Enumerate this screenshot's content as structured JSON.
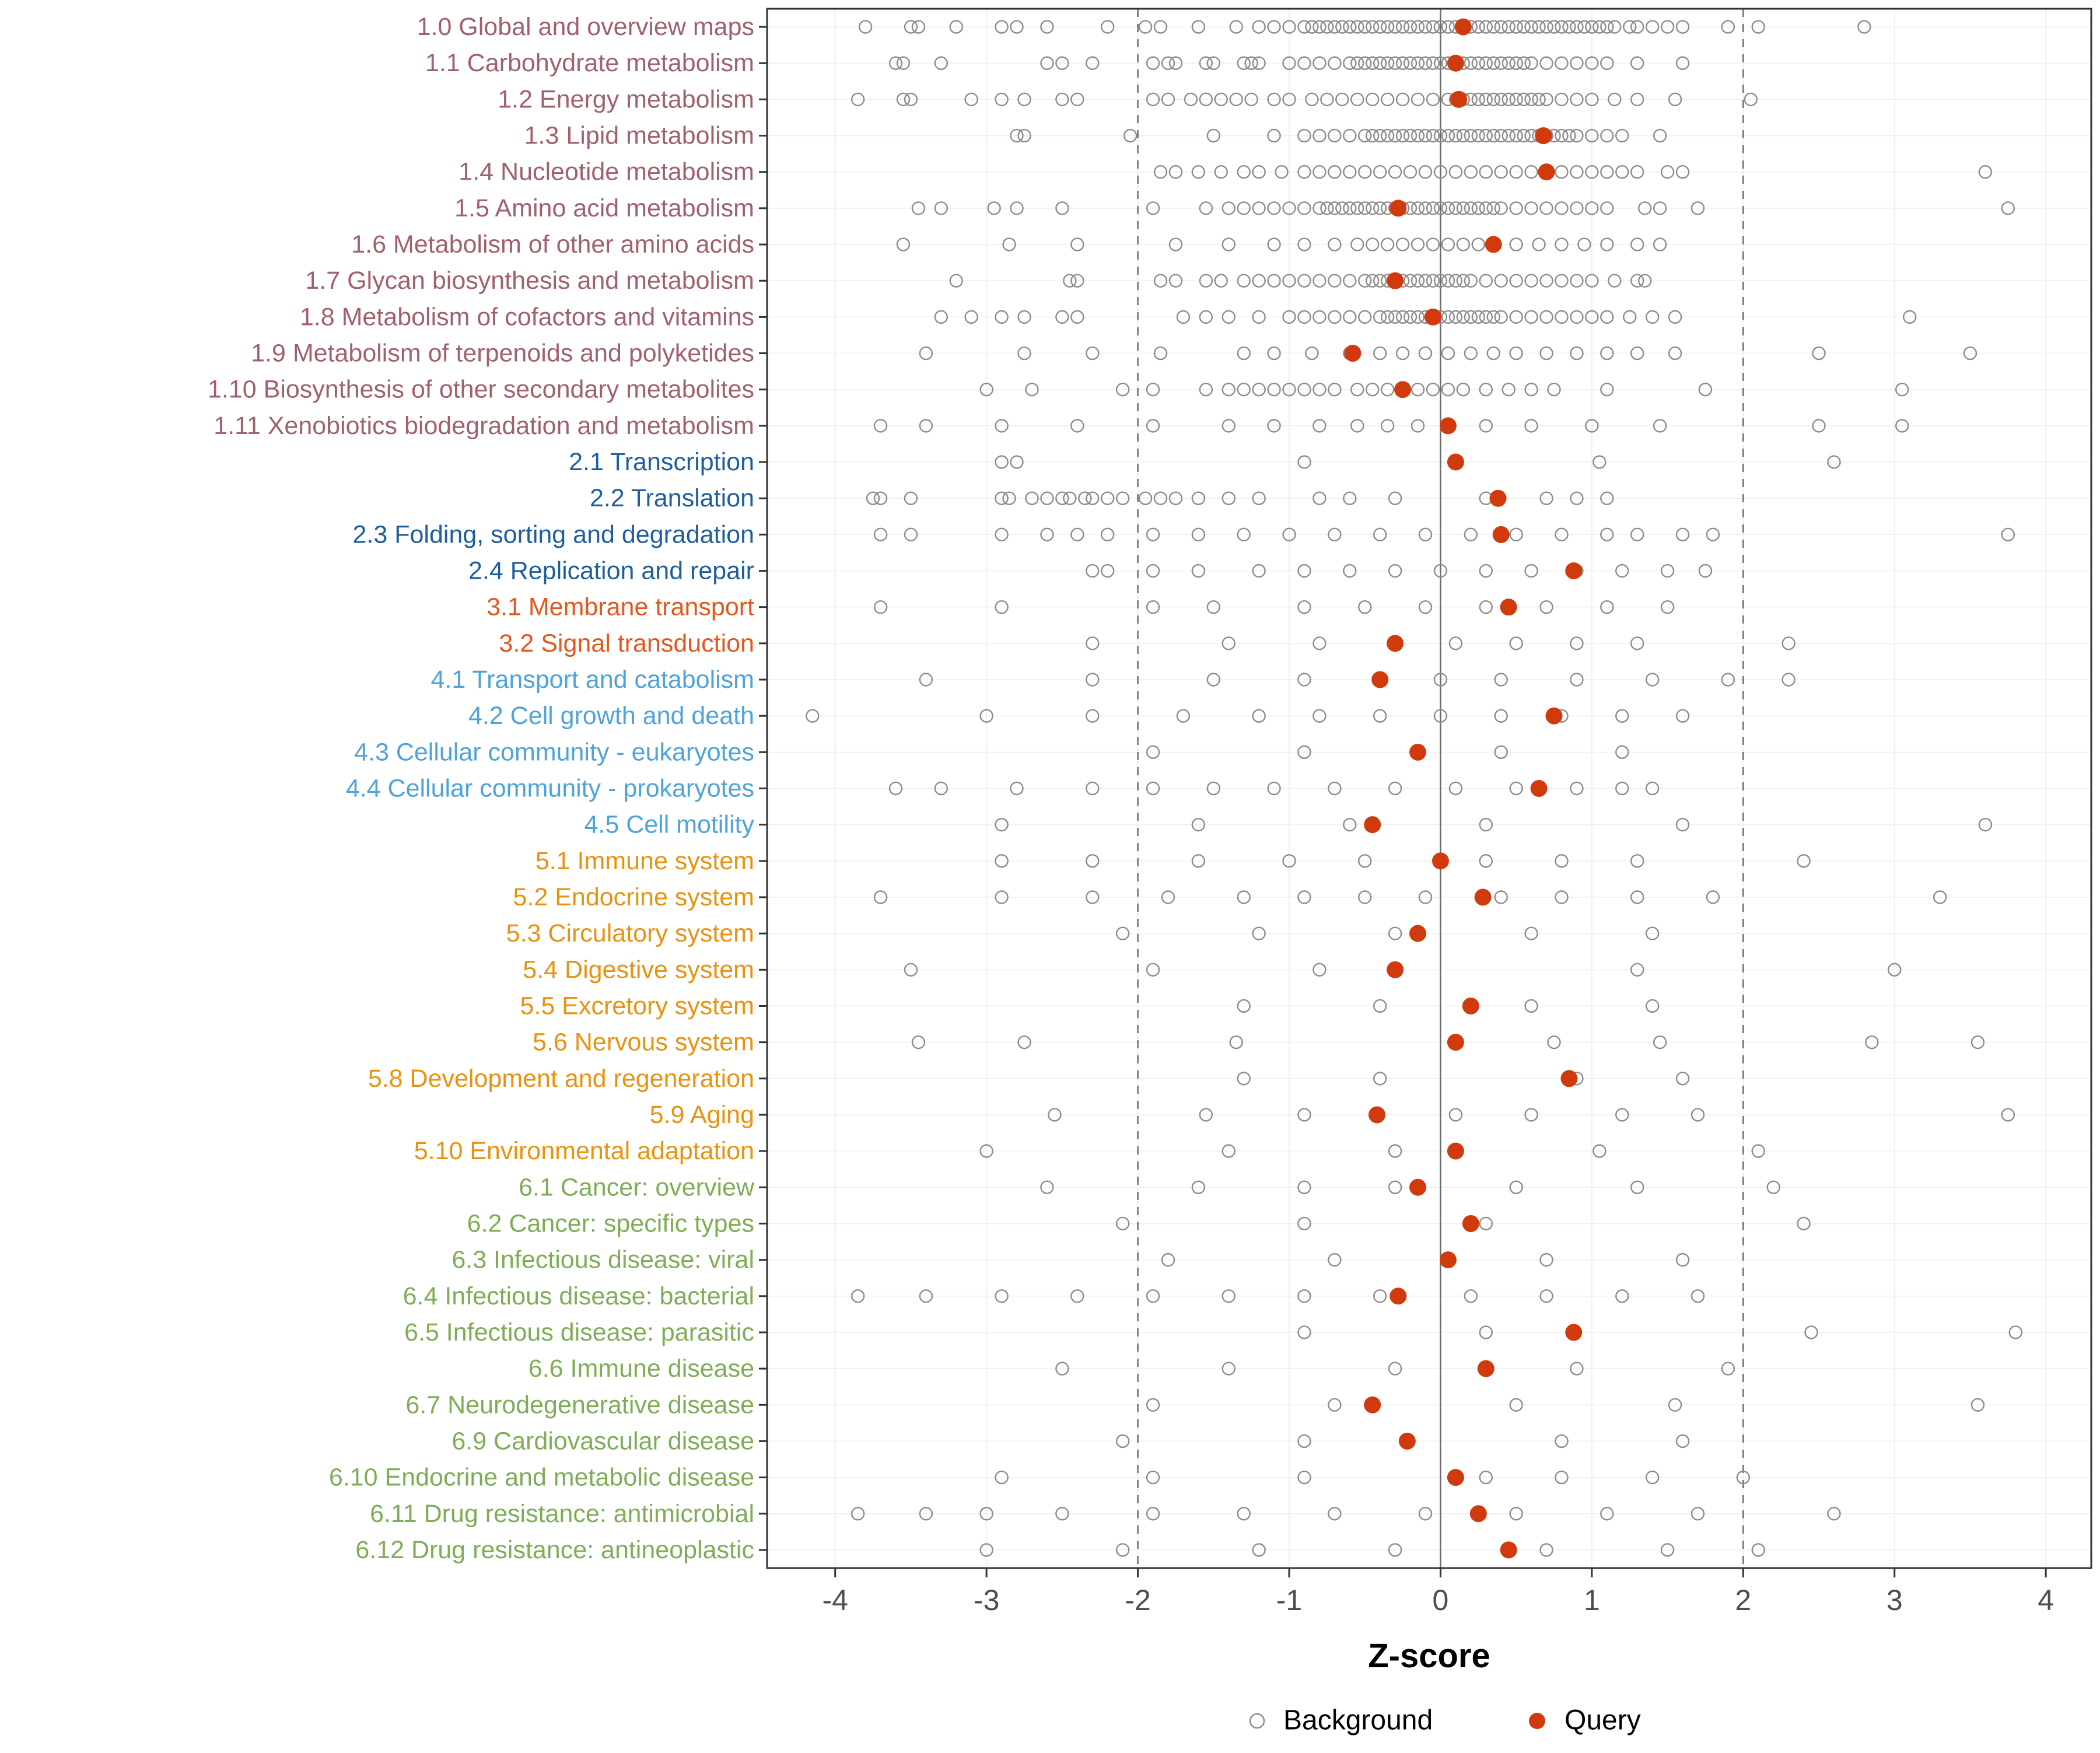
{
  "chart_data": {
    "type": "scatter",
    "subtype": "strip-plot",
    "title": "",
    "xlabel": "Z-score",
    "xlim": [
      -4.45,
      4.3
    ],
    "x_ticks": [
      -4,
      -3,
      -2,
      -1,
      0,
      1,
      2,
      3,
      4
    ],
    "reference_lines": {
      "solid_x": 0,
      "dashed_x": [
        -2,
        2
      ]
    },
    "legend": {
      "background_label": "Background",
      "query_label": "Query"
    },
    "group_colors": {
      "1": "#A0616A",
      "2": "#1F5E9E",
      "3": "#E4571C",
      "4": "#4DA3DA",
      "5": "#E9920F",
      "6": "#7FAD56"
    },
    "query_color": "#D03A0C",
    "background_color": "#8C8C8C",
    "grid_color": "#EFEFEF",
    "axis_text_color": "#4D4D4D",
    "rows": [
      {
        "label": "1.0 Global and overview maps",
        "group": "1",
        "query": 0.15,
        "background": [
          -3.8,
          -3.5,
          -3.45,
          -3.2,
          -2.9,
          -2.8,
          -2.6,
          -2.2,
          -1.95,
          -1.85,
          -1.6,
          -1.35,
          -1.2,
          -1.1,
          -1.0,
          -0.9,
          -0.85,
          -0.8,
          -0.75,
          -0.7,
          -0.65,
          -0.6,
          -0.55,
          -0.5,
          -0.45,
          -0.4,
          -0.35,
          -0.3,
          -0.25,
          -0.2,
          -0.15,
          -0.1,
          -0.05,
          0,
          0.05,
          0.1,
          0.15,
          0.2,
          0.25,
          0.3,
          0.35,
          0.4,
          0.45,
          0.5,
          0.55,
          0.6,
          0.65,
          0.7,
          0.75,
          0.8,
          0.85,
          0.9,
          0.95,
          1.0,
          1.05,
          1.1,
          1.15,
          1.25,
          1.3,
          1.4,
          1.5,
          1.6,
          1.9,
          2.1,
          2.8
        ]
      },
      {
        "label": "1.1 Carbohydrate metabolism",
        "group": "1",
        "query": 0.1,
        "background": [
          -3.6,
          -3.55,
          -3.3,
          -2.6,
          -2.5,
          -2.3,
          -1.9,
          -1.8,
          -1.75,
          -1.55,
          -1.5,
          -1.3,
          -1.25,
          -1.2,
          -1.0,
          -0.9,
          -0.8,
          -0.7,
          -0.6,
          -0.55,
          -0.5,
          -0.45,
          -0.4,
          -0.35,
          -0.3,
          -0.25,
          -0.2,
          -0.15,
          -0.1,
          -0.05,
          0,
          0.05,
          0.1,
          0.15,
          0.2,
          0.25,
          0.3,
          0.35,
          0.4,
          0.45,
          0.5,
          0.55,
          0.6,
          0.7,
          0.8,
          0.9,
          1.0,
          1.1,
          1.3,
          1.6
        ]
      },
      {
        "label": "1.2 Energy metabolism",
        "group": "1",
        "query": 0.12,
        "background": [
          -3.85,
          -3.55,
          -3.5,
          -3.1,
          -2.9,
          -2.75,
          -2.5,
          -2.4,
          -1.9,
          -1.8,
          -1.65,
          -1.55,
          -1.45,
          -1.35,
          -1.25,
          -1.1,
          -1.0,
          -0.85,
          -0.75,
          -0.65,
          -0.55,
          -0.45,
          -0.35,
          -0.25,
          -0.15,
          -0.05,
          0.05,
          0.1,
          0.15,
          0.2,
          0.25,
          0.3,
          0.35,
          0.4,
          0.45,
          0.5,
          0.55,
          0.6,
          0.65,
          0.7,
          0.8,
          0.9,
          1.0,
          1.15,
          1.3,
          1.55,
          2.05
        ]
      },
      {
        "label": "1.3 Lipid metabolism",
        "group": "1",
        "query": 0.68,
        "background": [
          -2.8,
          -2.75,
          -2.05,
          -1.5,
          -1.1,
          -0.9,
          -0.8,
          -0.7,
          -0.6,
          -0.5,
          -0.45,
          -0.4,
          -0.35,
          -0.3,
          -0.25,
          -0.2,
          -0.15,
          -0.1,
          -0.05,
          0,
          0.05,
          0.1,
          0.15,
          0.2,
          0.25,
          0.3,
          0.35,
          0.4,
          0.45,
          0.5,
          0.55,
          0.6,
          0.65,
          0.7,
          0.75,
          0.8,
          0.85,
          0.9,
          1.0,
          1.1,
          1.2,
          1.45
        ]
      },
      {
        "label": "1.4 Nucleotide metabolism",
        "group": "1",
        "query": 0.7,
        "background": [
          -1.85,
          -1.75,
          -1.6,
          -1.45,
          -1.3,
          -1.2,
          -1.05,
          -0.9,
          -0.8,
          -0.7,
          -0.6,
          -0.5,
          -0.4,
          -0.3,
          -0.2,
          -0.1,
          0,
          0.1,
          0.2,
          0.3,
          0.4,
          0.5,
          0.6,
          0.7,
          0.8,
          0.9,
          1.0,
          1.1,
          1.2,
          1.3,
          1.5,
          1.6,
          3.6
        ]
      },
      {
        "label": "1.5 Amino acid metabolism",
        "group": "1",
        "query": -0.28,
        "background": [
          -3.45,
          -3.3,
          -2.95,
          -2.8,
          -2.5,
          -1.9,
          -1.55,
          -1.4,
          -1.3,
          -1.2,
          -1.1,
          -1.0,
          -0.9,
          -0.8,
          -0.75,
          -0.7,
          -0.65,
          -0.6,
          -0.55,
          -0.5,
          -0.45,
          -0.4,
          -0.35,
          -0.3,
          -0.25,
          -0.2,
          -0.15,
          -0.1,
          -0.05,
          0,
          0.05,
          0.1,
          0.15,
          0.2,
          0.25,
          0.3,
          0.35,
          0.4,
          0.5,
          0.6,
          0.7,
          0.8,
          0.9,
          1.0,
          1.1,
          1.35,
          1.45,
          1.7,
          3.75
        ]
      },
      {
        "label": "1.6 Metabolism of other amino acids",
        "group": "1",
        "query": 0.35,
        "background": [
          -3.55,
          -2.85,
          -2.4,
          -1.75,
          -1.4,
          -1.1,
          -0.9,
          -0.7,
          -0.55,
          -0.45,
          -0.35,
          -0.25,
          -0.15,
          -0.05,
          0.05,
          0.15,
          0.25,
          0.35,
          0.5,
          0.65,
          0.8,
          0.95,
          1.1,
          1.3,
          1.45
        ]
      },
      {
        "label": "1.7 Glycan biosynthesis and metabolism",
        "group": "1",
        "query": -0.3,
        "background": [
          -3.2,
          -2.45,
          -2.4,
          -1.85,
          -1.75,
          -1.55,
          -1.45,
          -1.3,
          -1.2,
          -1.1,
          -1.0,
          -0.9,
          -0.8,
          -0.7,
          -0.6,
          -0.5,
          -0.45,
          -0.4,
          -0.35,
          -0.3,
          -0.25,
          -0.2,
          -0.15,
          -0.1,
          -0.05,
          0,
          0.05,
          0.1,
          0.15,
          0.2,
          0.3,
          0.4,
          0.5,
          0.6,
          0.7,
          0.8,
          0.9,
          1.0,
          1.15,
          1.3,
          1.35
        ]
      },
      {
        "label": "1.8 Metabolism of cofactors and vitamins",
        "group": "1",
        "query": -0.05,
        "background": [
          -3.3,
          -3.1,
          -2.9,
          -2.75,
          -2.5,
          -2.4,
          -1.7,
          -1.55,
          -1.4,
          -1.2,
          -1.0,
          -0.9,
          -0.8,
          -0.7,
          -0.6,
          -0.5,
          -0.4,
          -0.35,
          -0.3,
          -0.25,
          -0.2,
          -0.15,
          -0.1,
          -0.05,
          0,
          0.05,
          0.1,
          0.15,
          0.2,
          0.25,
          0.3,
          0.35,
          0.4,
          0.5,
          0.6,
          0.7,
          0.8,
          0.9,
          1.0,
          1.1,
          1.25,
          1.4,
          1.55,
          3.1
        ]
      },
      {
        "label": "1.9 Metabolism of terpenoids and polyketides",
        "group": "1",
        "query": -0.58,
        "background": [
          -3.4,
          -2.75,
          -2.3,
          -1.85,
          -1.3,
          -1.1,
          -0.85,
          -0.6,
          -0.4,
          -0.25,
          -0.1,
          0.05,
          0.2,
          0.35,
          0.5,
          0.7,
          0.9,
          1.1,
          1.3,
          1.55,
          2.5,
          3.5
        ]
      },
      {
        "label": "1.10 Biosynthesis of other secondary metabolites",
        "group": "1",
        "query": -0.25,
        "background": [
          -3.0,
          -2.7,
          -2.1,
          -1.9,
          -1.55,
          -1.4,
          -1.3,
          -1.2,
          -1.1,
          -1.0,
          -0.9,
          -0.8,
          -0.7,
          -0.55,
          -0.45,
          -0.35,
          -0.25,
          -0.15,
          -0.05,
          0.05,
          0.15,
          0.3,
          0.45,
          0.6,
          0.75,
          1.1,
          1.75,
          3.05
        ]
      },
      {
        "label": "1.11 Xenobiotics biodegradation and metabolism",
        "group": "1",
        "query": 0.05,
        "background": [
          -3.7,
          -3.4,
          -2.9,
          -2.4,
          -1.9,
          -1.4,
          -1.1,
          -0.8,
          -0.55,
          -0.35,
          -0.15,
          0.05,
          0.3,
          0.6,
          1.0,
          1.45,
          2.5,
          3.05
        ]
      },
      {
        "label": "2.1 Transcription",
        "group": "2",
        "query": 0.1,
        "background": [
          -2.9,
          -2.8,
          -0.9,
          1.05,
          2.6
        ]
      },
      {
        "label": "2.2 Translation",
        "group": "2",
        "query": 0.38,
        "background": [
          -3.75,
          -3.7,
          -3.5,
          -2.9,
          -2.85,
          -2.7,
          -2.6,
          -2.5,
          -2.45,
          -2.35,
          -2.3,
          -2.2,
          -2.1,
          -1.95,
          -1.85,
          -1.75,
          -1.6,
          -1.4,
          -1.2,
          -0.8,
          -0.6,
          -0.3,
          0.3,
          0.7,
          0.9,
          1.1
        ]
      },
      {
        "label": "2.3 Folding, sorting and degradation",
        "group": "2",
        "query": 0.4,
        "background": [
          -3.7,
          -3.5,
          -2.9,
          -2.6,
          -2.4,
          -2.2,
          -1.9,
          -1.6,
          -1.3,
          -1.0,
          -0.7,
          -0.4,
          -0.1,
          0.2,
          0.5,
          0.8,
          1.1,
          1.3,
          1.6,
          1.8,
          3.75
        ]
      },
      {
        "label": "2.4 Replication and repair",
        "group": "2",
        "query": 0.88,
        "background": [
          -2.3,
          -2.2,
          -1.9,
          -1.6,
          -1.2,
          -0.9,
          -0.6,
          -0.3,
          0,
          0.3,
          0.6,
          0.9,
          1.2,
          1.5,
          1.75
        ]
      },
      {
        "label": "3.1 Membrane transport",
        "group": "3",
        "query": 0.45,
        "background": [
          -3.7,
          -2.9,
          -1.9,
          -1.5,
          -0.9,
          -0.5,
          -0.1,
          0.3,
          0.7,
          1.1,
          1.5
        ]
      },
      {
        "label": "3.2 Signal transduction",
        "group": "3",
        "query": -0.3,
        "background": [
          -2.3,
          -1.4,
          -0.8,
          -0.3,
          0.1,
          0.5,
          0.9,
          1.3,
          2.3
        ]
      },
      {
        "label": "4.1 Transport and catabolism",
        "group": "4",
        "query": -0.4,
        "background": [
          -3.4,
          -2.3,
          -1.5,
          -0.9,
          -0.4,
          0,
          0.4,
          0.9,
          1.4,
          1.9,
          2.3
        ]
      },
      {
        "label": "4.2 Cell growth and death",
        "group": "4",
        "query": 0.75,
        "background": [
          -4.15,
          -3.0,
          -2.3,
          -1.7,
          -1.2,
          -0.8,
          -0.4,
          0,
          0.4,
          0.8,
          1.2,
          1.6
        ]
      },
      {
        "label": "4.3 Cellular community - eukaryotes",
        "group": "4",
        "query": -0.15,
        "background": [
          -1.9,
          -0.9,
          0.4,
          1.2
        ]
      },
      {
        "label": "4.4 Cellular community - prokaryotes",
        "group": "4",
        "query": 0.65,
        "background": [
          -3.6,
          -3.3,
          -2.8,
          -2.3,
          -1.9,
          -1.5,
          -1.1,
          -0.7,
          -0.3,
          0.1,
          0.5,
          0.9,
          1.2,
          1.4
        ]
      },
      {
        "label": "4.5 Cell motility",
        "group": "4",
        "query": -0.45,
        "background": [
          -2.9,
          -1.6,
          -0.6,
          0.3,
          1.6,
          3.6
        ]
      },
      {
        "label": "5.1 Immune system",
        "group": "5",
        "query": 0.0,
        "background": [
          -2.9,
          -2.3,
          -1.6,
          -1.0,
          -0.5,
          0.3,
          0.8,
          1.3,
          2.4
        ]
      },
      {
        "label": "5.2 Endocrine system",
        "group": "5",
        "query": 0.28,
        "background": [
          -3.7,
          -2.9,
          -2.3,
          -1.8,
          -1.3,
          -0.9,
          -0.5,
          -0.1,
          0.4,
          0.8,
          1.3,
          1.8,
          3.3
        ]
      },
      {
        "label": "5.3 Circulatory system",
        "group": "5",
        "query": -0.15,
        "background": [
          -2.1,
          -1.2,
          -0.3,
          0.6,
          1.4
        ]
      },
      {
        "label": "5.4 Digestive system",
        "group": "5",
        "query": -0.3,
        "background": [
          -3.5,
          -1.9,
          -0.8,
          1.3,
          3.0
        ]
      },
      {
        "label": "5.5 Excretory system",
        "group": "5",
        "query": 0.2,
        "background": [
          -1.3,
          -0.4,
          0.6,
          1.4
        ]
      },
      {
        "label": "5.6 Nervous system",
        "group": "5",
        "query": 0.1,
        "background": [
          -3.45,
          -2.75,
          -1.35,
          0.75,
          1.45,
          2.85,
          3.55
        ]
      },
      {
        "label": "5.8 Development and regeneration",
        "group": "5",
        "query": 0.85,
        "background": [
          -1.3,
          -0.4,
          0.9,
          1.6
        ]
      },
      {
        "label": "5.9 Aging",
        "group": "5",
        "query": -0.42,
        "background": [
          -2.55,
          -1.55,
          -0.9,
          0.1,
          0.6,
          1.2,
          1.7,
          3.75
        ]
      },
      {
        "label": "5.10 Environmental adaptation",
        "group": "5",
        "query": 0.1,
        "background": [
          -3.0,
          -1.4,
          -0.3,
          1.05,
          2.1
        ]
      },
      {
        "label": "6.1 Cancer: overview",
        "group": "6",
        "query": -0.15,
        "background": [
          -2.6,
          -1.6,
          -0.9,
          -0.3,
          0.5,
          1.3,
          2.2
        ]
      },
      {
        "label": "6.2 Cancer: specific types",
        "group": "6",
        "query": 0.2,
        "background": [
          -2.1,
          -0.9,
          0.3,
          2.4
        ]
      },
      {
        "label": "6.3 Infectious disease: viral",
        "group": "6",
        "query": 0.05,
        "background": [
          -1.8,
          -0.7,
          0.7,
          1.6
        ]
      },
      {
        "label": "6.4 Infectious disease: bacterial",
        "group": "6",
        "query": -0.28,
        "background": [
          -3.85,
          -3.4,
          -2.9,
          -2.4,
          -1.9,
          -1.4,
          -0.9,
          -0.4,
          0.2,
          0.7,
          1.2,
          1.7
        ]
      },
      {
        "label": "6.5 Infectious disease: parasitic",
        "group": "6",
        "query": 0.88,
        "background": [
          -0.9,
          0.3,
          2.45,
          3.8
        ]
      },
      {
        "label": "6.6 Immune disease",
        "group": "6",
        "query": 0.3,
        "background": [
          -2.5,
          -1.4,
          -0.3,
          0.9,
          1.9
        ]
      },
      {
        "label": "6.7 Neurodegenerative disease",
        "group": "6",
        "query": -0.45,
        "background": [
          -1.9,
          -0.7,
          0.5,
          1.55,
          3.55
        ]
      },
      {
        "label": "6.9 Cardiovascular disease",
        "group": "6",
        "query": -0.22,
        "background": [
          -2.1,
          -0.9,
          0.8,
          1.6
        ]
      },
      {
        "label": "6.10 Endocrine and metabolic disease",
        "group": "6",
        "query": 0.1,
        "background": [
          -2.9,
          -1.9,
          -0.9,
          0.3,
          0.8,
          1.4,
          2.0
        ]
      },
      {
        "label": "6.11 Drug resistance: antimicrobial",
        "group": "6",
        "query": 0.25,
        "background": [
          -3.85,
          -3.4,
          -3.0,
          -2.5,
          -1.9,
          -1.3,
          -0.7,
          -0.1,
          0.5,
          1.1,
          1.7,
          2.6
        ]
      },
      {
        "label": "6.12 Drug resistance: antineoplastic",
        "group": "6",
        "query": 0.45,
        "background": [
          -3.0,
          -2.1,
          -1.2,
          -0.3,
          0.7,
          1.5,
          2.1
        ]
      }
    ]
  }
}
